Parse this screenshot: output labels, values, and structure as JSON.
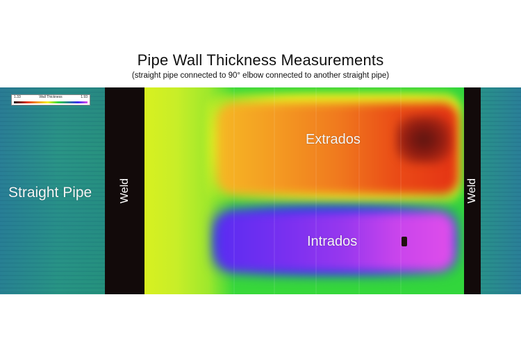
{
  "title": "Pipe Wall Thickness Measurements",
  "subtitle": "(straight pipe connected to 90° elbow connected to another straight pipe)",
  "legend": {
    "min": "1.33",
    "title": "Wall Thickness",
    "max": "1.93"
  },
  "labels": {
    "straight_pipe": "Straight Pipe",
    "weld_left": "Weld",
    "weld_right": "Weld",
    "extrados": "Extrados",
    "intrados": "Intrados"
  },
  "colors": {
    "thin": "#1a0606",
    "red": "#e43214",
    "orange": "#f49a22",
    "yellow": "#f5f020",
    "green": "#32d63c",
    "teal": "#2a7f96",
    "blue": "#3a2cf0",
    "magenta": "#e04eea",
    "weld": "#120a0a"
  }
}
